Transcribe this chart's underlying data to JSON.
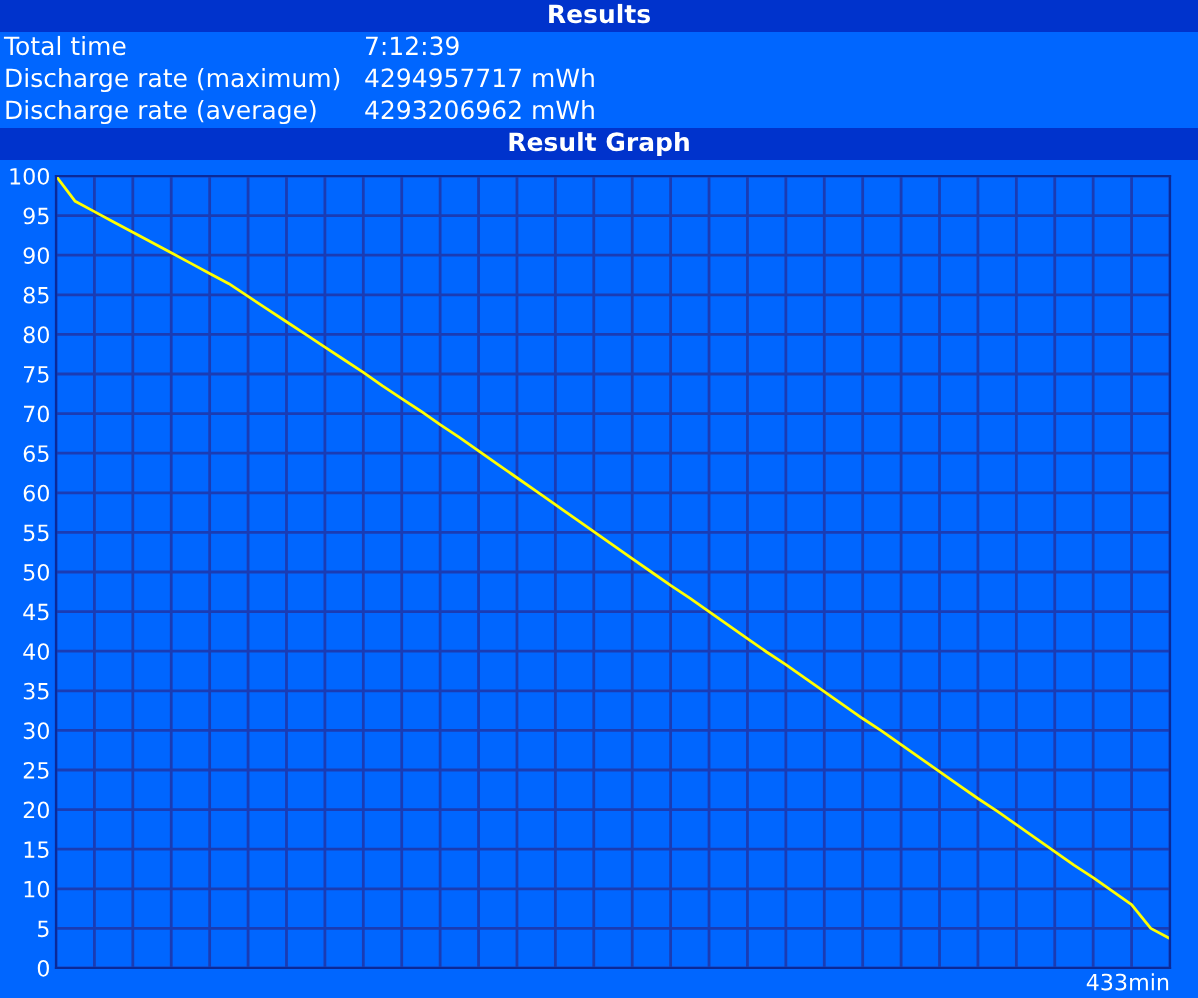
{
  "chart_data": {
    "type": "line",
    "title": "Results",
    "subtitle": "Result Graph",
    "annotations": [
      "Total time",
      "7:12:39",
      "Discharge rate (maximum)",
      "4294957717 mWh",
      "Discharge rate (average)",
      "4293206962 mWh",
      "433min"
    ],
    "categories": [
      null,
      null,
      null,
      null,
      null,
      null,
      null,
      null,
      null,
      null,
      null,
      null,
      null,
      null,
      null,
      null,
      null,
      null,
      null,
      null,
      null,
      null,
      null,
      null,
      null,
      null,
      null,
      null,
      null,
      null,
      null,
      null,
      null,
      null,
      null,
      null,
      null,
      null,
      null,
      null,
      null,
      null,
      null,
      null,
      null,
      null,
      null,
      null,
      null,
      null,
      null,
      null,
      null,
      null,
      null,
      null,
      null,
      null,
      null
    ],
    "series": [
      {
        "color": "#ffff00",
        "values": [
          100,
          96.8,
          95.5,
          94.2,
          92.9,
          91.6,
          90.3,
          89.0,
          87.7,
          86.4,
          84.8,
          83.2,
          81.6,
          80.0,
          78.4,
          76.8,
          75.2,
          73.5,
          71.9,
          70.3,
          68.6,
          67.0,
          65.3,
          63.6,
          61.9,
          60.2,
          58.5,
          56.8,
          55.1,
          53.4,
          51.7,
          50.0,
          48.3,
          46.7,
          45.0,
          43.3,
          41.6,
          39.9,
          38.3,
          36.6,
          34.9,
          33.2,
          31.5,
          29.9,
          28.2,
          26.5,
          24.8,
          23.1,
          21.4,
          19.8,
          18.1,
          16.4,
          14.7,
          13.0,
          11.4,
          9.7,
          8.0,
          5.0,
          3.7
        ]
      }
    ],
    "ylim": [
      0,
      100
    ],
    "yticks": [
      0,
      5,
      10,
      15,
      20,
      25,
      30,
      35,
      40,
      45,
      50,
      55,
      60,
      65,
      70,
      75,
      80,
      85,
      90,
      95,
      100
    ],
    "grid": true,
    "tick_labels": "y",
    "line_style": "solid",
    "marker": "none"
  }
}
